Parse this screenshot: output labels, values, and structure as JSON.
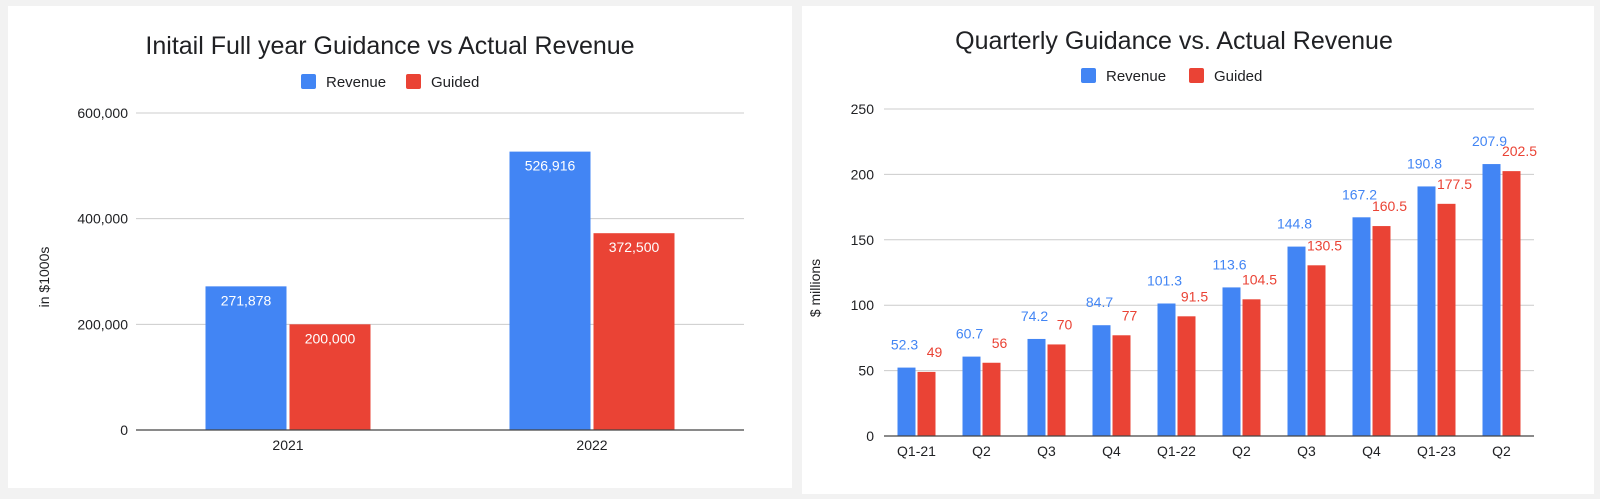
{
  "colors": {
    "revenue": "#4285f4",
    "guided": "#ea4335",
    "inside_label": "#ffffff"
  },
  "chart_data": [
    {
      "type": "bar",
      "title": "Initail Full year Guidance vs Actual Revenue",
      "legend_position": "top",
      "ylabel": "in $1000s",
      "xlabel": "",
      "ylim": [
        0,
        600000
      ],
      "yticks": [
        0,
        200000,
        400000,
        600000
      ],
      "ytick_labels": [
        "0",
        "200,000",
        "400,000",
        "600,000"
      ],
      "grid": true,
      "categories": [
        "2021",
        "2022"
      ],
      "series": [
        {
          "name": "Revenue",
          "values": [
            271878,
            526916
          ],
          "labels": [
            "271,878",
            "526,916"
          ]
        },
        {
          "name": "Guided",
          "values": [
            200000,
            372500
          ],
          "labels": [
            "200,000",
            "372,500"
          ]
        }
      ]
    },
    {
      "type": "bar",
      "title": "Quarterly Guidance vs. Actual Revenue",
      "legend_position": "top",
      "ylabel": "$ millions",
      "xlabel": "",
      "ylim": [
        0,
        250
      ],
      "yticks": [
        0,
        50,
        100,
        150,
        200,
        250
      ],
      "ytick_labels": [
        "0",
        "50",
        "100",
        "150",
        "200",
        "250"
      ],
      "grid": true,
      "categories": [
        "Q1-21",
        "Q2",
        "Q3",
        "Q4",
        "Q1-22",
        "Q2",
        "Q3",
        "Q4",
        "Q1-23",
        "Q2"
      ],
      "series": [
        {
          "name": "Revenue",
          "values": [
            52.3,
            60.7,
            74.2,
            84.7,
            101.3,
            113.6,
            144.8,
            167.2,
            190.8,
            207.9
          ],
          "labels": [
            "52.3",
            "60.7",
            "74.2",
            "84.7",
            "101.3",
            "113.6",
            "144.8",
            "167.2",
            "190.8",
            "207.9"
          ]
        },
        {
          "name": "Guided",
          "values": [
            49,
            56,
            70,
            77,
            91.5,
            104.5,
            130.5,
            160.5,
            177.5,
            202.5
          ],
          "labels": [
            "49",
            "56",
            "70",
            "77",
            "91.5",
            "104.5",
            "130.5",
            "160.5",
            "177.5",
            "202.5"
          ]
        }
      ]
    }
  ]
}
